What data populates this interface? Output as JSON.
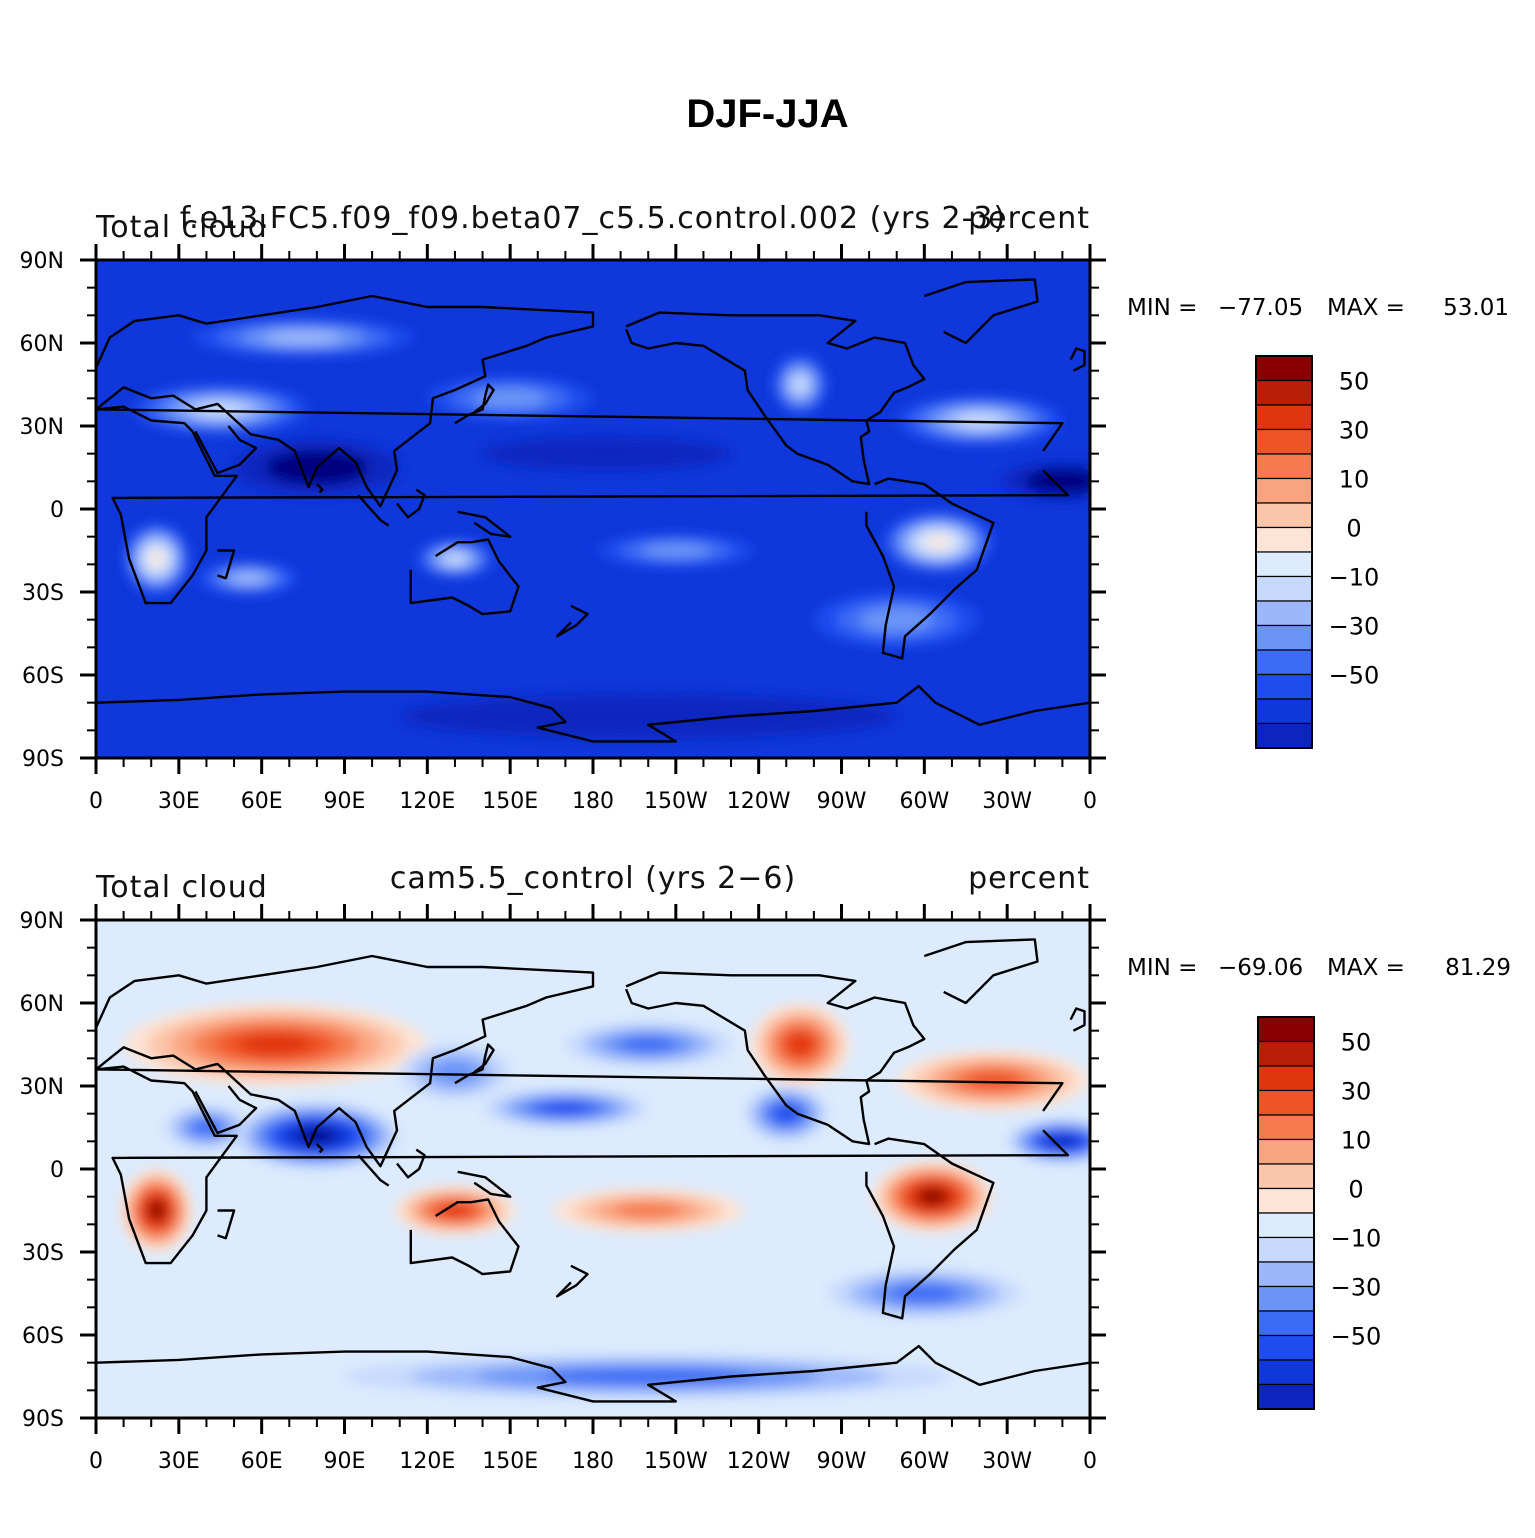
{
  "figure": {
    "title": "DJF-JJA"
  },
  "colors": {
    "levels": [
      "#00007f",
      "#0d25bf",
      "#0f37db",
      "#1e4cef",
      "#3c6cf5",
      "#6b94f7",
      "#9cb8fb",
      "#c7dafd",
      "#dcebfd",
      "#fde4d6",
      "#fcc6aa",
      "#f9a480",
      "#f57a4e",
      "#ef5428",
      "#e1350f",
      "#b81f06",
      "#8a0000"
    ],
    "ocean_base": "#1a45e6",
    "coast": "#000000"
  },
  "panels": [
    {
      "id": "top",
      "left_label": "Total cloud",
      "center_label": "f.e13.FC5.f09_f09.beta07_c5.5.control.002 (yrs 2-3)",
      "right_label": "percent",
      "stats": {
        "min_label": "MIN =",
        "min_value": "−77.05",
        "max_label": "MAX =",
        "max_value": "53.01"
      },
      "base_level": 2
    },
    {
      "id": "bottom",
      "left_label": "Total cloud",
      "center_label": "cam5.5_control (yrs 2−6)",
      "right_label": "percent",
      "stats": {
        "min_label": "MIN =",
        "min_value": "−69.06",
        "max_label": "MAX =",
        "max_value": "81.29"
      },
      "base_level": 8
    }
  ],
  "axes": {
    "lat_ticks": [
      {
        "value": 90,
        "label": "90N"
      },
      {
        "value": 60,
        "label": "60N"
      },
      {
        "value": 30,
        "label": "30N"
      },
      {
        "value": 0,
        "label": "0"
      },
      {
        "value": -30,
        "label": "30S"
      },
      {
        "value": -60,
        "label": "60S"
      },
      {
        "value": -90,
        "label": "90S"
      }
    ],
    "lon_ticks": [
      {
        "value": 0,
        "label": "0"
      },
      {
        "value": 30,
        "label": "30E"
      },
      {
        "value": 60,
        "label": "60E"
      },
      {
        "value": 90,
        "label": "90E"
      },
      {
        "value": 120,
        "label": "120E"
      },
      {
        "value": 150,
        "label": "150E"
      },
      {
        "value": 180,
        "label": "180"
      },
      {
        "value": 210,
        "label": "150W"
      },
      {
        "value": 240,
        "label": "120W"
      },
      {
        "value": 270,
        "label": "90W"
      },
      {
        "value": 300,
        "label": "60W"
      },
      {
        "value": 330,
        "label": "30W"
      },
      {
        "value": 360,
        "label": "0"
      }
    ],
    "lon_range": [
      0,
      360
    ],
    "lat_range": [
      -90,
      90
    ]
  },
  "colorbar": {
    "labels": [
      {
        "level_boundary": 15,
        "text": "50"
      },
      {
        "level_boundary": 13,
        "text": "30"
      },
      {
        "level_boundary": 11,
        "text": "10"
      },
      {
        "level_boundary": 9,
        "text": "0"
      },
      {
        "level_boundary": 7,
        "text": "−10"
      },
      {
        "level_boundary": 5,
        "text": "−30"
      },
      {
        "level_boundary": 3,
        "text": "−50"
      }
    ]
  },
  "anomalies": {
    "top": [
      {
        "lon": 45,
        "lat": 36,
        "rx": 32,
        "ry": 9,
        "d": 5
      },
      {
        "lon": 22,
        "lat": -18,
        "rx": 12,
        "ry": 13,
        "d": 7
      },
      {
        "lon": 305,
        "lat": -12,
        "rx": 20,
        "ry": 11,
        "d": 7
      },
      {
        "lon": 255,
        "lat": 45,
        "rx": 10,
        "ry": 11,
        "d": 5
      },
      {
        "lon": 320,
        "lat": 32,
        "rx": 30,
        "ry": 9,
        "d": 5
      },
      {
        "lon": 130,
        "lat": -18,
        "rx": 14,
        "ry": 7,
        "d": 5
      },
      {
        "lon": 55,
        "lat": -25,
        "rx": 18,
        "ry": 6,
        "d": 4
      },
      {
        "lon": 210,
        "lat": -15,
        "rx": 28,
        "ry": 6,
        "d": 3
      },
      {
        "lon": 75,
        "lat": 62,
        "rx": 40,
        "ry": 7,
        "d": 4
      },
      {
        "lon": 80,
        "lat": 15,
        "rx": 30,
        "ry": 10,
        "d": -2
      },
      {
        "lon": 350,
        "lat": 10,
        "rx": 22,
        "ry": 7,
        "d": -2
      },
      {
        "lon": 185,
        "lat": 20,
        "rx": 45,
        "ry": 6,
        "d": -1
      },
      {
        "lon": 200,
        "lat": -75,
        "rx": 90,
        "ry": 8,
        "d": -1
      },
      {
        "lon": 150,
        "lat": 40,
        "rx": 30,
        "ry": 8,
        "d": 3
      },
      {
        "lon": 290,
        "lat": -40,
        "rx": 30,
        "ry": 10,
        "d": 3
      }
    ],
    "bottom": [
      {
        "lon": 65,
        "lat": 45,
        "rx": 55,
        "ry": 15,
        "d": 6
      },
      {
        "lon": 22,
        "lat": -15,
        "rx": 13,
        "ry": 15,
        "d": 8
      },
      {
        "lon": 303,
        "lat": -10,
        "rx": 22,
        "ry": 13,
        "d": 8
      },
      {
        "lon": 255,
        "lat": 45,
        "rx": 18,
        "ry": 15,
        "d": 6
      },
      {
        "lon": 325,
        "lat": 32,
        "rx": 35,
        "ry": 11,
        "d": 5
      },
      {
        "lon": 130,
        "lat": -15,
        "rx": 22,
        "ry": 9,
        "d": 6
      },
      {
        "lon": 200,
        "lat": -15,
        "rx": 35,
        "ry": 8,
        "d": 4
      },
      {
        "lon": 80,
        "lat": 12,
        "rx": 30,
        "ry": 12,
        "d": -8
      },
      {
        "lon": 350,
        "lat": 10,
        "rx": 20,
        "ry": 8,
        "d": -7
      },
      {
        "lon": 170,
        "lat": 22,
        "rx": 30,
        "ry": 7,
        "d": -5
      },
      {
        "lon": 200,
        "lat": 45,
        "rx": 30,
        "ry": 8,
        "d": -4
      },
      {
        "lon": 250,
        "lat": 20,
        "rx": 15,
        "ry": 10,
        "d": -5
      },
      {
        "lon": 300,
        "lat": -45,
        "rx": 35,
        "ry": 9,
        "d": -4
      },
      {
        "lon": 200,
        "lat": -75,
        "rx": 110,
        "ry": 8,
        "d": -4
      },
      {
        "lon": 130,
        "lat": 35,
        "rx": 20,
        "ry": 10,
        "d": -3
      },
      {
        "lon": 40,
        "lat": 15,
        "rx": 15,
        "ry": 8,
        "d": -4
      }
    ]
  }
}
